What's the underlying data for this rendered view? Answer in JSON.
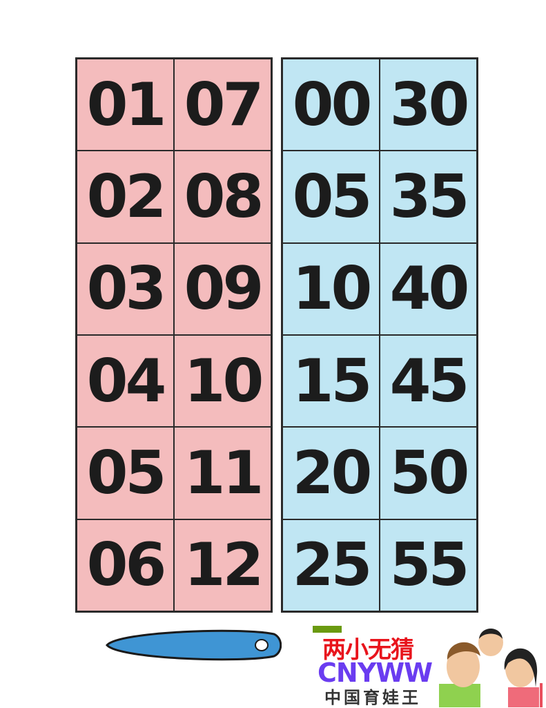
{
  "pink_cards": [
    "01",
    "07",
    "02",
    "08",
    "03",
    "09",
    "04",
    "10",
    "05",
    "11",
    "06",
    "12"
  ],
  "blue_cards": [
    "00",
    "30",
    "05",
    "35",
    "10",
    "40",
    "15",
    "45",
    "20",
    "50",
    "25",
    "55"
  ],
  "colors": {
    "pink": "#f4bcbd",
    "blue": "#c0e6f3",
    "hand": "#3f95d4"
  },
  "logo": {
    "line1": "两小无猜",
    "line2": "CNYWW",
    "line3": "中国育娃王"
  }
}
